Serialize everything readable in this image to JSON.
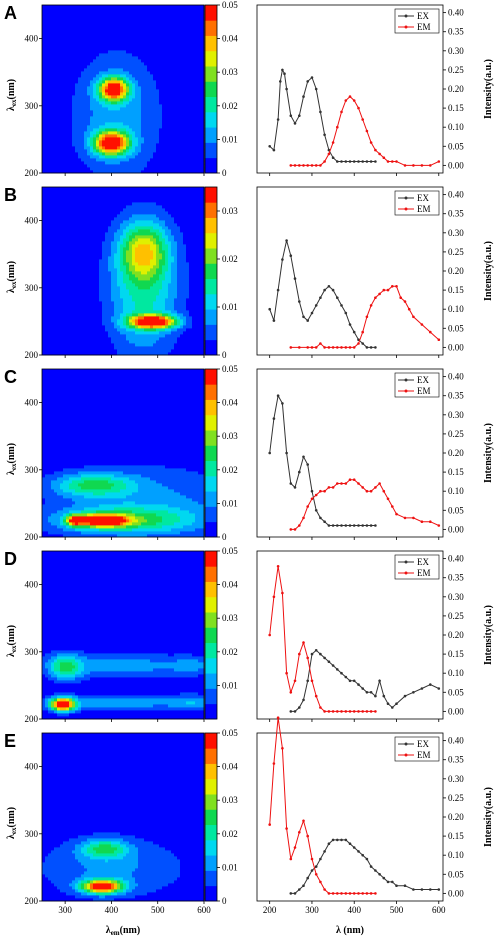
{
  "axes": {
    "contour_xlabel_main": "λ",
    "contour_xlabel_sub": "em",
    "contour_xlabel_unit": "(nm)",
    "contour_ylabel_main": "λ",
    "contour_ylabel_sub": "ex",
    "contour_ylabel_unit": "(nm)",
    "spectra_xlabel": "λ (nm)",
    "spectra_ylabel": "Intensity(a.u.)"
  },
  "colors": {
    "ex": "#333333",
    "em": "#ee1111",
    "colormap": [
      "#0000ff",
      "#0050ff",
      "#00a0ff",
      "#00d8f0",
      "#00e8a0",
      "#10d850",
      "#80e020",
      "#e0f000",
      "#ffc000",
      "#ff7000",
      "#ff1000"
    ]
  },
  "chart_data": [
    {
      "panel": "A",
      "type": "heatmap",
      "x_range": [
        250,
        600
      ],
      "y_range": [
        200,
        450
      ],
      "x_ticks": [
        "300",
        "400",
        "500",
        "600"
      ],
      "y_ticks": [
        "200",
        "300",
        "400"
      ],
      "colorbar_max": 0.05,
      "colorbar_ticks": [
        "0",
        "0.01",
        "0.02",
        "0.03",
        "0.04",
        "0.05"
      ],
      "peaks": [
        {
          "x": 405,
          "y": 325,
          "sx": 22,
          "sy": 12,
          "a": 0.047
        },
        {
          "x": 400,
          "y": 245,
          "sx": 26,
          "sy": 12,
          "a": 0.05
        },
        {
          "x": 410,
          "y": 285,
          "sx": 70,
          "sy": 70,
          "a": 0.012
        }
      ]
    },
    {
      "panel": "A",
      "type": "line",
      "x_range": [
        170,
        610
      ],
      "y_range": [
        -0.02,
        0.42
      ],
      "x_ticks": [],
      "y_ticks": [
        "0.00",
        "0.05",
        "0.10",
        "0.15",
        "0.20",
        "0.25",
        "0.30",
        "0.35",
        "0.40"
      ],
      "legend": [
        "EX",
        "EM"
      ],
      "series": [
        {
          "name": "EX",
          "x": [
            200,
            210,
            220,
            225,
            230,
            235,
            240,
            250,
            260,
            270,
            280,
            290,
            300,
            310,
            320,
            330,
            340,
            350,
            360,
            370,
            380,
            390,
            400,
            410,
            420,
            430,
            440,
            450
          ],
          "y": [
            0.05,
            0.04,
            0.12,
            0.22,
            0.25,
            0.24,
            0.2,
            0.13,
            0.11,
            0.13,
            0.18,
            0.22,
            0.23,
            0.2,
            0.14,
            0.08,
            0.04,
            0.02,
            0.01,
            0.01,
            0.01,
            0.01,
            0.01,
            0.01,
            0.01,
            0.01,
            0.01,
            0.01
          ]
        },
        {
          "name": "EM",
          "x": [
            250,
            260,
            270,
            280,
            290,
            300,
            310,
            320,
            330,
            340,
            350,
            360,
            370,
            380,
            390,
            400,
            410,
            420,
            430,
            440,
            450,
            460,
            470,
            480,
            490,
            500,
            520,
            540,
            560,
            580,
            600
          ],
          "y": [
            0.0,
            0.0,
            0.0,
            0.0,
            0.0,
            0.0,
            0.0,
            0.0,
            0.01,
            0.03,
            0.06,
            0.1,
            0.14,
            0.17,
            0.18,
            0.17,
            0.15,
            0.12,
            0.09,
            0.06,
            0.04,
            0.03,
            0.02,
            0.01,
            0.01,
            0.01,
            0.0,
            0.0,
            0.0,
            0.0,
            0.01
          ]
        }
      ]
    },
    {
      "panel": "B",
      "type": "heatmap",
      "x_range": [
        250,
        600
      ],
      "y_range": [
        200,
        450
      ],
      "x_ticks": [
        "300",
        "400",
        "500",
        "600"
      ],
      "y_ticks": [
        "200",
        "300",
        "400"
      ],
      "colorbar_max": 0.035,
      "colorbar_ticks": [
        "0",
        "0.01",
        "0.02",
        "0.03"
      ],
      "peaks": [
        {
          "x": 490,
          "y": 250,
          "sx": 35,
          "sy": 7,
          "a": 0.035
        },
        {
          "x": 470,
          "y": 355,
          "sx": 35,
          "sy": 28,
          "a": 0.018
        },
        {
          "x": 470,
          "y": 300,
          "sx": 55,
          "sy": 70,
          "a": 0.014
        }
      ]
    },
    {
      "panel": "B",
      "type": "line",
      "x_range": [
        170,
        610
      ],
      "y_range": [
        -0.02,
        0.42
      ],
      "x_ticks": [],
      "y_ticks": [
        "0.00",
        "0.05",
        "0.10",
        "0.15",
        "0.20",
        "0.25",
        "0.30",
        "0.35",
        "0.40"
      ],
      "legend": [
        "EX",
        "EM"
      ],
      "series": [
        {
          "name": "EX",
          "x": [
            200,
            210,
            220,
            230,
            240,
            250,
            260,
            270,
            280,
            290,
            300,
            310,
            320,
            330,
            340,
            350,
            360,
            370,
            380,
            390,
            400,
            410,
            420,
            430,
            440,
            450
          ],
          "y": [
            0.1,
            0.07,
            0.15,
            0.23,
            0.28,
            0.24,
            0.18,
            0.12,
            0.08,
            0.07,
            0.09,
            0.11,
            0.13,
            0.15,
            0.16,
            0.15,
            0.13,
            0.11,
            0.09,
            0.06,
            0.04,
            0.02,
            0.01,
            0.0,
            0.0,
            0.0
          ]
        },
        {
          "name": "EM",
          "x": [
            250,
            270,
            290,
            300,
            310,
            320,
            330,
            340,
            350,
            360,
            370,
            380,
            390,
            400,
            410,
            420,
            430,
            440,
            450,
            460,
            470,
            480,
            490,
            500,
            510,
            520,
            530,
            540,
            560,
            580,
            600
          ],
          "y": [
            0.0,
            0.0,
            0.0,
            0.0,
            0.0,
            0.01,
            0.0,
            0.0,
            0.0,
            0.0,
            0.0,
            0.0,
            0.0,
            0.0,
            0.01,
            0.04,
            0.08,
            0.11,
            0.13,
            0.14,
            0.15,
            0.15,
            0.16,
            0.16,
            0.13,
            0.12,
            0.1,
            0.08,
            0.06,
            0.04,
            0.02
          ]
        }
      ]
    },
    {
      "panel": "C",
      "type": "heatmap",
      "x_range": [
        250,
        600
      ],
      "y_range": [
        200,
        450
      ],
      "x_ticks": [
        "300",
        "400",
        "500",
        "600"
      ],
      "y_ticks": [
        "200",
        "300",
        "400"
      ],
      "colorbar_max": 0.05,
      "colorbar_ticks": [
        "0",
        "0.01",
        "0.02",
        "0.03",
        "0.04",
        "0.05"
      ],
      "peaks": [
        {
          "x": 380,
          "y": 225,
          "sx": 35,
          "sy": 6,
          "a": 0.05
        },
        {
          "x": 320,
          "y": 225,
          "sx": 12,
          "sy": 6,
          "a": 0.03
        },
        {
          "x": 430,
          "y": 225,
          "sx": 110,
          "sy": 14,
          "a": 0.02
        },
        {
          "x": 360,
          "y": 278,
          "sx": 60,
          "sy": 12,
          "a": 0.02
        },
        {
          "x": 480,
          "y": 255,
          "sx": 150,
          "sy": 40,
          "a": 0.01
        }
      ]
    },
    {
      "panel": "C",
      "type": "line",
      "x_range": [
        170,
        610
      ],
      "y_range": [
        -0.02,
        0.42
      ],
      "x_ticks": [],
      "y_ticks": [
        "0.00",
        "0.05",
        "0.10",
        "0.15",
        "0.20",
        "0.25",
        "0.30",
        "0.35",
        "0.40"
      ],
      "legend": [
        "EX",
        "EM"
      ],
      "series": [
        {
          "name": "EX",
          "x": [
            200,
            210,
            220,
            230,
            240,
            250,
            260,
            270,
            280,
            290,
            300,
            310,
            320,
            330,
            340,
            350,
            360,
            370,
            380,
            390,
            400,
            410,
            420,
            430,
            440,
            450
          ],
          "y": [
            0.2,
            0.29,
            0.35,
            0.33,
            0.2,
            0.12,
            0.11,
            0.15,
            0.19,
            0.17,
            0.1,
            0.05,
            0.03,
            0.02,
            0.01,
            0.01,
            0.01,
            0.01,
            0.01,
            0.01,
            0.01,
            0.01,
            0.01,
            0.01,
            0.01,
            0.01
          ]
        },
        {
          "name": "EM",
          "x": [
            250,
            260,
            270,
            280,
            290,
            300,
            310,
            320,
            330,
            340,
            350,
            360,
            370,
            380,
            390,
            400,
            410,
            420,
            430,
            440,
            450,
            460,
            470,
            480,
            490,
            500,
            520,
            540,
            560,
            580,
            600
          ],
          "y": [
            0.0,
            0.0,
            0.01,
            0.03,
            0.06,
            0.08,
            0.09,
            0.1,
            0.1,
            0.11,
            0.11,
            0.12,
            0.12,
            0.12,
            0.13,
            0.13,
            0.12,
            0.11,
            0.1,
            0.1,
            0.11,
            0.12,
            0.1,
            0.08,
            0.06,
            0.04,
            0.03,
            0.03,
            0.02,
            0.02,
            0.01
          ]
        }
      ]
    },
    {
      "panel": "D",
      "type": "heatmap",
      "x_range": [
        250,
        600
      ],
      "y_range": [
        200,
        450
      ],
      "x_ticks": [
        "300",
        "400",
        "500",
        "600"
      ],
      "y_ticks": [
        "200",
        "300",
        "400"
      ],
      "colorbar_max": 0.05,
      "colorbar_ticks": [
        "0.01",
        "0.02",
        "0.03",
        "0.04",
        "0.05"
      ],
      "peaks": [
        {
          "x": 295,
          "y": 222,
          "sx": 18,
          "sy": 7,
          "a": 0.05
        },
        {
          "x": 300,
          "y": 278,
          "sx": 25,
          "sy": 14,
          "a": 0.02
        },
        {
          "x": 420,
          "y": 280,
          "sx": 110,
          "sy": 14,
          "a": 0.012
        },
        {
          "x": 420,
          "y": 225,
          "sx": 130,
          "sy": 9,
          "a": 0.012
        },
        {
          "x": 575,
          "y": 280,
          "sx": 30,
          "sy": 10,
          "a": 0.008
        },
        {
          "x": 575,
          "y": 225,
          "sx": 30,
          "sy": 9,
          "a": 0.008
        }
      ]
    },
    {
      "panel": "D",
      "type": "line",
      "x_range": [
        170,
        610
      ],
      "y_range": [
        -0.02,
        0.42
      ],
      "x_ticks": [],
      "y_ticks": [
        "0.00",
        "0.05",
        "0.10",
        "0.15",
        "0.20",
        "0.25",
        "0.30",
        "0.35",
        "0.40"
      ],
      "legend": [
        "EX",
        "EM"
      ],
      "series": [
        {
          "name": "EX",
          "x": [
            250,
            260,
            270,
            280,
            290,
            300,
            310,
            320,
            330,
            340,
            350,
            360,
            370,
            380,
            390,
            400,
            410,
            420,
            430,
            440,
            450,
            460,
            470,
            480,
            490,
            500,
            520,
            540,
            560,
            580,
            600
          ],
          "y": [
            0.0,
            0.0,
            0.01,
            0.03,
            0.08,
            0.15,
            0.16,
            0.15,
            0.14,
            0.13,
            0.12,
            0.11,
            0.1,
            0.09,
            0.08,
            0.08,
            0.07,
            0.06,
            0.05,
            0.05,
            0.04,
            0.08,
            0.04,
            0.02,
            0.01,
            0.02,
            0.04,
            0.05,
            0.06,
            0.07,
            0.06
          ]
        },
        {
          "name": "EM",
          "x": [
            200,
            210,
            220,
            230,
            240,
            250,
            260,
            270,
            280,
            290,
            300,
            310,
            320,
            330,
            340,
            350,
            360,
            370,
            380,
            390,
            400,
            410,
            420,
            430,
            440,
            450
          ],
          "y": [
            0.2,
            0.3,
            0.38,
            0.31,
            0.1,
            0.05,
            0.08,
            0.15,
            0.18,
            0.14,
            0.08,
            0.04,
            0.01,
            0.0,
            0.0,
            0.0,
            0.0,
            0.0,
            0.0,
            0.0,
            0.0,
            0.0,
            0.0,
            0.0,
            0.0,
            0.0
          ]
        }
      ]
    },
    {
      "panel": "E",
      "type": "heatmap",
      "x_range": [
        250,
        600
      ],
      "y_range": [
        200,
        450
      ],
      "x_ticks": [
        "300",
        "400",
        "500",
        "600"
      ],
      "y_ticks": [
        "200",
        "300",
        "400"
      ],
      "colorbar_max": 0.05,
      "colorbar_ticks": [
        "0",
        "0.01",
        "0.02",
        "0.03",
        "0.04",
        "0.05"
      ],
      "peaks": [
        {
          "x": 380,
          "y": 222,
          "sx": 30,
          "sy": 7,
          "a": 0.05
        },
        {
          "x": 385,
          "y": 278,
          "sx": 35,
          "sy": 10,
          "a": 0.02
        },
        {
          "x": 400,
          "y": 250,
          "sx": 120,
          "sy": 35,
          "a": 0.01
        }
      ]
    },
    {
      "panel": "E",
      "type": "line",
      "x_range": [
        170,
        610
      ],
      "y_range": [
        -0.02,
        0.42
      ],
      "x_ticks": [
        "200",
        "300",
        "400",
        "500",
        "600"
      ],
      "y_ticks": [
        "0.00",
        "0.05",
        "0.10",
        "0.15",
        "0.20",
        "0.25",
        "0.30",
        "0.35",
        "0.40"
      ],
      "legend": [
        "EX",
        "EM"
      ],
      "series": [
        {
          "name": "EX",
          "x": [
            250,
            260,
            270,
            280,
            290,
            300,
            310,
            320,
            330,
            340,
            350,
            360,
            370,
            380,
            390,
            400,
            410,
            420,
            430,
            440,
            450,
            460,
            470,
            480,
            490,
            500,
            520,
            540,
            560,
            580,
            600
          ],
          "y": [
            0.0,
            0.0,
            0.01,
            0.02,
            0.04,
            0.06,
            0.07,
            0.09,
            0.11,
            0.13,
            0.14,
            0.14,
            0.14,
            0.14,
            0.13,
            0.12,
            0.11,
            0.1,
            0.09,
            0.07,
            0.06,
            0.05,
            0.04,
            0.03,
            0.03,
            0.02,
            0.02,
            0.01,
            0.01,
            0.01,
            0.01
          ]
        },
        {
          "name": "EM",
          "x": [
            200,
            210,
            220,
            230,
            240,
            250,
            260,
            270,
            280,
            290,
            300,
            310,
            320,
            330,
            340,
            350,
            360,
            370,
            380,
            390,
            400,
            410,
            420,
            430,
            440,
            450
          ],
          "y": [
            0.18,
            0.34,
            0.46,
            0.38,
            0.17,
            0.09,
            0.12,
            0.16,
            0.19,
            0.15,
            0.09,
            0.05,
            0.03,
            0.01,
            0.0,
            0.0,
            0.0,
            0.0,
            0.0,
            0.0,
            0.0,
            0.0,
            0.0,
            0.0,
            0.0,
            0.0
          ]
        }
      ]
    }
  ]
}
